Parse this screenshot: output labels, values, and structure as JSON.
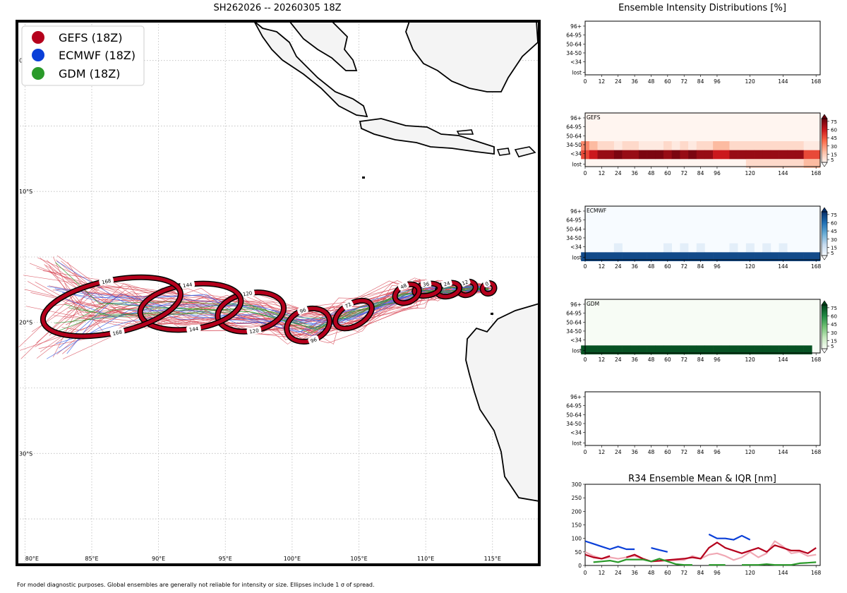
{
  "map": {
    "title": "SH262026 -- 20260305 18Z",
    "footnote": "For model diagnostic purposes. Global ensembles are generally not reliable for intensity or size. Ellipses include 1 σ of spread.",
    "lon_ticks": [
      "80°E",
      "85°E",
      "90°E",
      "95°E",
      "100°E",
      "105°E",
      "110°E",
      "115°E"
    ],
    "lat_ticks": [
      "0°",
      "10°S",
      "20°S",
      "30°S"
    ],
    "legend": [
      {
        "label": "GEFS (18Z)",
        "color": "#b5001c"
      },
      {
        "label": "ECMWF (18Z)",
        "color": "#0a3fd8"
      },
      {
        "label": "GDM (18Z)",
        "color": "#2a9a2a"
      }
    ]
  },
  "chart_data": [
    {
      "type": "scatter",
      "title": "SH262026 -- 20260305 18Z",
      "xlim": [
        79.4,
        118.5
      ],
      "ylim": [
        -38.5,
        3.0
      ],
      "grid": true,
      "legend_placement": "top-left",
      "ellipses_gefs": [
        {
          "tau": 0,
          "lon": 114.7,
          "lat": -17.4,
          "w": 0.9,
          "h": 0.8,
          "tilt": 20
        },
        {
          "tau": 12,
          "lon": 113.1,
          "lat": -17.4,
          "w": 1.3,
          "h": 1.0,
          "tilt": 20
        },
        {
          "tau": 24,
          "lon": 111.7,
          "lat": -17.5,
          "w": 1.7,
          "h": 1.0,
          "tilt": 15
        },
        {
          "tau": 36,
          "lon": 110.1,
          "lat": -17.5,
          "w": 1.9,
          "h": 0.9,
          "tilt": 10
        },
        {
          "tau": 48,
          "lon": 108.6,
          "lat": -17.8,
          "w": 1.9,
          "h": 1.3,
          "tilt": 25
        },
        {
          "tau": 72,
          "lon": 104.6,
          "lat": -19.4,
          "w": 3.0,
          "h": 1.7,
          "tilt": 30
        },
        {
          "tau": 96,
          "lon": 101.2,
          "lat": -20.2,
          "w": 3.3,
          "h": 2.4,
          "tilt": 20
        },
        {
          "tau": 120,
          "lon": 96.9,
          "lat": -19.2,
          "w": 5.0,
          "h": 2.9,
          "tilt": 10
        },
        {
          "tau": 144,
          "lon": 92.4,
          "lat": -18.8,
          "w": 7.6,
          "h": 3.4,
          "tilt": 8
        },
        {
          "tau": 168,
          "lon": 86.5,
          "lat": -18.8,
          "w": 10.5,
          "h": 4.0,
          "tilt": 12
        }
      ]
    },
    {
      "type": "heatmap",
      "title": "Ensemble Intensity Distributions [%]",
      "panels": [
        "",
        "GEFS",
        "ECMWF",
        "GDM",
        ""
      ],
      "x": [
        0,
        6,
        12,
        18,
        24,
        30,
        36,
        42,
        48,
        54,
        60,
        66,
        72,
        78,
        84,
        90,
        96,
        102,
        108,
        114,
        120,
        126,
        132,
        138,
        144,
        150,
        156,
        162,
        168
      ],
      "x_ticks": [
        0,
        12,
        24,
        36,
        48,
        60,
        72,
        84,
        96,
        120,
        144,
        168
      ],
      "y_categories": [
        "96+",
        "64-95",
        "50-64",
        "34-50",
        "<34",
        "lost"
      ],
      "colorbar_ticks": [
        5,
        15,
        30,
        45,
        60,
        75
      ],
      "gefs": {
        "96+": [
          0,
          0,
          0,
          0,
          0,
          0,
          0,
          0,
          0,
          0,
          0,
          0,
          0,
          0,
          0,
          0,
          0,
          0,
          0,
          0,
          0,
          0,
          0,
          0,
          0,
          0,
          0,
          0,
          0
        ],
        "64-95": [
          0,
          0,
          0,
          0,
          0,
          0,
          0,
          0,
          0,
          0,
          0,
          0,
          0,
          0,
          0,
          0,
          0,
          0,
          0,
          0,
          0,
          0,
          0,
          0,
          0,
          0,
          0,
          0,
          0
        ],
        "50-64": [
          0,
          0,
          0,
          0,
          0,
          0,
          0,
          0,
          0,
          0,
          0,
          0,
          0,
          0,
          0,
          0,
          0,
          0,
          0,
          0,
          0,
          0,
          0,
          0,
          0,
          0,
          0,
          0,
          0
        ],
        "34-50": [
          40,
          25,
          12,
          12,
          5,
          12,
          12,
          5,
          5,
          5,
          12,
          5,
          12,
          5,
          12,
          12,
          25,
          25,
          12,
          12,
          12,
          12,
          12,
          12,
          12,
          12,
          12,
          5,
          5
        ],
        "<34": [
          60,
          75,
          88,
          88,
          95,
          88,
          88,
          95,
          95,
          95,
          88,
          95,
          88,
          95,
          88,
          88,
          75,
          75,
          88,
          88,
          88,
          88,
          88,
          88,
          88,
          88,
          88,
          60,
          60
        ],
        "lost": [
          0,
          0,
          0,
          0,
          0,
          0,
          0,
          0,
          0,
          0,
          0,
          0,
          0,
          0,
          0,
          0,
          0,
          0,
          0,
          0,
          12,
          12,
          12,
          12,
          12,
          12,
          12,
          25,
          25
        ]
      },
      "ecmwf": {
        "96+": [
          0,
          0,
          0,
          0,
          0,
          0,
          0,
          0,
          0,
          0,
          0,
          0,
          0,
          0,
          0,
          0,
          0,
          0,
          0,
          0,
          0,
          0,
          0,
          0,
          0,
          0,
          0,
          0,
          0
        ],
        "64-95": [
          0,
          0,
          0,
          0,
          0,
          0,
          0,
          0,
          0,
          0,
          0,
          0,
          0,
          0,
          0,
          0,
          0,
          0,
          0,
          0,
          0,
          0,
          0,
          0,
          0,
          0,
          0,
          0,
          0
        ],
        "50-64": [
          0,
          0,
          0,
          0,
          0,
          0,
          0,
          0,
          0,
          0,
          0,
          0,
          0,
          0,
          0,
          0,
          0,
          0,
          0,
          0,
          0,
          0,
          0,
          0,
          0,
          0,
          0,
          0,
          0
        ],
        "34-50": [
          0,
          0,
          0,
          0,
          0,
          0,
          0,
          0,
          0,
          0,
          0,
          0,
          0,
          0,
          0,
          0,
          0,
          0,
          0,
          0,
          0,
          0,
          0,
          0,
          0,
          0,
          0,
          0,
          0
        ],
        "<34": [
          0,
          0,
          0,
          0,
          10,
          0,
          0,
          0,
          0,
          0,
          10,
          0,
          10,
          0,
          10,
          0,
          0,
          0,
          10,
          0,
          10,
          0,
          10,
          0,
          10,
          0,
          0,
          0,
          0
        ],
        "lost": [
          90,
          90,
          90,
          90,
          90,
          90,
          90,
          90,
          90,
          90,
          90,
          90,
          90,
          90,
          90,
          90,
          90,
          90,
          90,
          90,
          90,
          90,
          90,
          90,
          90,
          90,
          90,
          90,
          90
        ]
      },
      "gdm": {
        "96+": [
          0,
          0,
          0,
          0,
          0,
          0,
          0,
          0,
          0,
          0,
          0,
          0,
          0,
          0,
          0,
          0,
          0,
          0,
          0,
          0,
          0,
          0,
          0,
          0,
          0,
          0,
          0,
          0,
          0
        ],
        "64-95": [
          0,
          0,
          0,
          0,
          0,
          0,
          0,
          0,
          0,
          0,
          0,
          0,
          0,
          0,
          0,
          0,
          0,
          0,
          0,
          0,
          0,
          0,
          0,
          0,
          0,
          0,
          0,
          0,
          0
        ],
        "50-64": [
          0,
          0,
          0,
          0,
          0,
          0,
          0,
          0,
          0,
          0,
          0,
          0,
          0,
          0,
          0,
          0,
          0,
          0,
          0,
          0,
          0,
          0,
          0,
          0,
          0,
          0,
          0,
          0,
          0
        ],
        "34-50": [
          0,
          0,
          0,
          0,
          0,
          0,
          0,
          0,
          0,
          0,
          0,
          0,
          0,
          0,
          0,
          0,
          0,
          0,
          0,
          0,
          0,
          0,
          0,
          0,
          0,
          0,
          0,
          0,
          0
        ],
        "<34": [
          0,
          0,
          0,
          0,
          0,
          0,
          0,
          0,
          0,
          0,
          0,
          0,
          0,
          0,
          0,
          0,
          0,
          0,
          0,
          0,
          0,
          0,
          0,
          0,
          0,
          0,
          0,
          0,
          0
        ],
        "lost": [
          95,
          95,
          95,
          95,
          95,
          95,
          95,
          95,
          95,
          95,
          95,
          95,
          95,
          95,
          95,
          95,
          95,
          95,
          95,
          95,
          95,
          95,
          95,
          95,
          95,
          95,
          95,
          95,
          0
        ]
      }
    },
    {
      "type": "line",
      "title": "R34 Ensemble Mean & IQR [nm]",
      "x_ticks": [
        0,
        12,
        24,
        36,
        48,
        60,
        72,
        84,
        96,
        120,
        144,
        168
      ],
      "ylim": [
        0,
        300
      ],
      "y_ticks": [
        0,
        50,
        100,
        150,
        200,
        250,
        300
      ],
      "series": [
        {
          "name": "gefs_iqr",
          "color": "#f0a8b4",
          "x": [
            0,
            6,
            12,
            18,
            24,
            30,
            36,
            42,
            48,
            72,
            78,
            84,
            90,
            96,
            102,
            108,
            114,
            120,
            126,
            132,
            138,
            144,
            150,
            156,
            162,
            168
          ],
          "values": [
            50,
            35,
            25,
            30,
            25,
            30,
            35,
            25,
            15,
            20,
            35,
            25,
            40,
            45,
            35,
            20,
            30,
            50,
            30,
            45,
            90,
            70,
            45,
            50,
            35,
            40
          ]
        },
        {
          "name": "gefs_mean",
          "color": "#b5001c",
          "x": [
            0,
            6,
            12,
            18,
            24,
            30,
            36,
            42,
            48,
            72,
            78,
            84,
            90,
            96,
            102,
            108,
            114,
            120,
            126,
            132,
            138,
            144,
            150,
            156,
            162,
            168
          ],
          "values": [
            40,
            30,
            25,
            35,
            null,
            30,
            40,
            25,
            15,
            25,
            30,
            25,
            65,
            85,
            65,
            55,
            45,
            55,
            65,
            50,
            75,
            65,
            55,
            55,
            45,
            65
          ]
        },
        {
          "name": "ecmwf_mean",
          "color": "#0a3fd8",
          "x": [
            0,
            6,
            12,
            18,
            24,
            30,
            36,
            42,
            48,
            54,
            60,
            66,
            72,
            78,
            84,
            90,
            96,
            102,
            108,
            114,
            120
          ],
          "values": [
            90,
            80,
            70,
            60,
            70,
            60,
            60,
            null,
            65,
            57,
            50,
            null,
            null,
            null,
            null,
            115,
            100,
            100,
            95,
            110,
            95
          ]
        },
        {
          "name": "gdm_mean",
          "color": "#2a9a2a",
          "x": [
            6,
            12,
            18,
            24,
            30,
            36,
            42,
            48,
            54,
            60,
            66,
            72,
            78,
            84,
            90,
            96,
            102,
            108,
            114,
            120,
            126,
            132,
            138,
            144,
            150,
            156,
            162,
            168
          ],
          "values": [
            12,
            15,
            18,
            12,
            22,
            22,
            22,
            15,
            25,
            15,
            5,
            2,
            2,
            null,
            2,
            2,
            2,
            null,
            2,
            2,
            2,
            5,
            2,
            2,
            2,
            8,
            10,
            12
          ]
        }
      ]
    }
  ]
}
